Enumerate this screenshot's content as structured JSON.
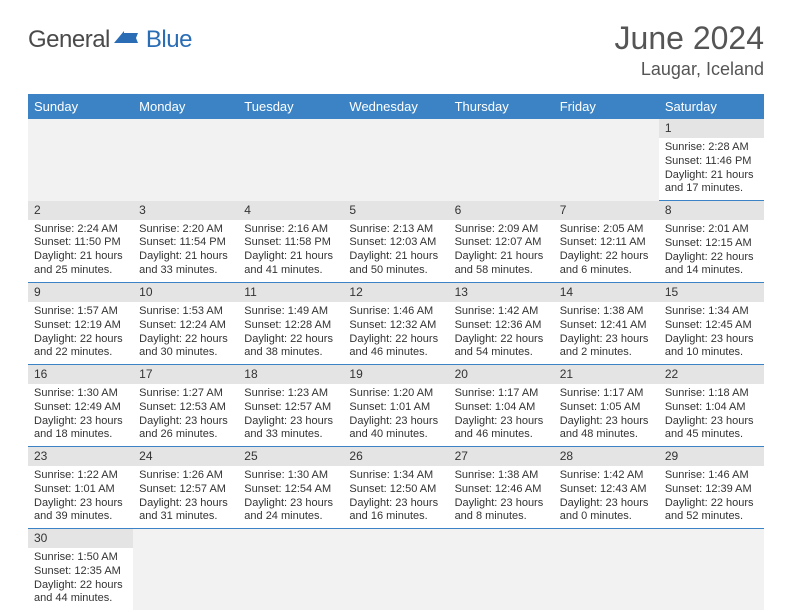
{
  "logo": {
    "general": "General",
    "blue": "Blue"
  },
  "title": {
    "month": "June 2024",
    "location": "Laugar, Iceland"
  },
  "colors": {
    "header_bg": "#3b83c4",
    "header_fg": "#ffffff",
    "daynum_bg": "#e4e4e4",
    "row_divider": "#3b83c4",
    "empty_bg": "#f2f2f2",
    "logo_blue": "#2a6db5",
    "text": "#333333"
  },
  "weekdays": [
    "Sunday",
    "Monday",
    "Tuesday",
    "Wednesday",
    "Thursday",
    "Friday",
    "Saturday"
  ],
  "weeks": [
    [
      null,
      null,
      null,
      null,
      null,
      null,
      {
        "n": "1",
        "sr": "Sunrise: 2:28 AM",
        "ss": "Sunset: 11:46 PM",
        "dl1": "Daylight: 21 hours",
        "dl2": "and 17 minutes."
      }
    ],
    [
      {
        "n": "2",
        "sr": "Sunrise: 2:24 AM",
        "ss": "Sunset: 11:50 PM",
        "dl1": "Daylight: 21 hours",
        "dl2": "and 25 minutes."
      },
      {
        "n": "3",
        "sr": "Sunrise: 2:20 AM",
        "ss": "Sunset: 11:54 PM",
        "dl1": "Daylight: 21 hours",
        "dl2": "and 33 minutes."
      },
      {
        "n": "4",
        "sr": "Sunrise: 2:16 AM",
        "ss": "Sunset: 11:58 PM",
        "dl1": "Daylight: 21 hours",
        "dl2": "and 41 minutes."
      },
      {
        "n": "5",
        "sr": "Sunrise: 2:13 AM",
        "ss": "Sunset: 12:03 AM",
        "dl1": "Daylight: 21 hours",
        "dl2": "and 50 minutes."
      },
      {
        "n": "6",
        "sr": "Sunrise: 2:09 AM",
        "ss": "Sunset: 12:07 AM",
        "dl1": "Daylight: 21 hours",
        "dl2": "and 58 minutes."
      },
      {
        "n": "7",
        "sr": "Sunrise: 2:05 AM",
        "ss": "Sunset: 12:11 AM",
        "dl1": "Daylight: 22 hours",
        "dl2": "and 6 minutes."
      },
      {
        "n": "8",
        "sr": "Sunrise: 2:01 AM",
        "ss": "Sunset: 12:15 AM",
        "dl1": "Daylight: 22 hours",
        "dl2": "and 14 minutes."
      }
    ],
    [
      {
        "n": "9",
        "sr": "Sunrise: 1:57 AM",
        "ss": "Sunset: 12:19 AM",
        "dl1": "Daylight: 22 hours",
        "dl2": "and 22 minutes."
      },
      {
        "n": "10",
        "sr": "Sunrise: 1:53 AM",
        "ss": "Sunset: 12:24 AM",
        "dl1": "Daylight: 22 hours",
        "dl2": "and 30 minutes."
      },
      {
        "n": "11",
        "sr": "Sunrise: 1:49 AM",
        "ss": "Sunset: 12:28 AM",
        "dl1": "Daylight: 22 hours",
        "dl2": "and 38 minutes."
      },
      {
        "n": "12",
        "sr": "Sunrise: 1:46 AM",
        "ss": "Sunset: 12:32 AM",
        "dl1": "Daylight: 22 hours",
        "dl2": "and 46 minutes."
      },
      {
        "n": "13",
        "sr": "Sunrise: 1:42 AM",
        "ss": "Sunset: 12:36 AM",
        "dl1": "Daylight: 22 hours",
        "dl2": "and 54 minutes."
      },
      {
        "n": "14",
        "sr": "Sunrise: 1:38 AM",
        "ss": "Sunset: 12:41 AM",
        "dl1": "Daylight: 23 hours",
        "dl2": "and 2 minutes."
      },
      {
        "n": "15",
        "sr": "Sunrise: 1:34 AM",
        "ss": "Sunset: 12:45 AM",
        "dl1": "Daylight: 23 hours",
        "dl2": "and 10 minutes."
      }
    ],
    [
      {
        "n": "16",
        "sr": "Sunrise: 1:30 AM",
        "ss": "Sunset: 12:49 AM",
        "dl1": "Daylight: 23 hours",
        "dl2": "and 18 minutes."
      },
      {
        "n": "17",
        "sr": "Sunrise: 1:27 AM",
        "ss": "Sunset: 12:53 AM",
        "dl1": "Daylight: 23 hours",
        "dl2": "and 26 minutes."
      },
      {
        "n": "18",
        "sr": "Sunrise: 1:23 AM",
        "ss": "Sunset: 12:57 AM",
        "dl1": "Daylight: 23 hours",
        "dl2": "and 33 minutes."
      },
      {
        "n": "19",
        "sr": "Sunrise: 1:20 AM",
        "ss": "Sunset: 1:01 AM",
        "dl1": "Daylight: 23 hours",
        "dl2": "and 40 minutes."
      },
      {
        "n": "20",
        "sr": "Sunrise: 1:17 AM",
        "ss": "Sunset: 1:04 AM",
        "dl1": "Daylight: 23 hours",
        "dl2": "and 46 minutes."
      },
      {
        "n": "21",
        "sr": "Sunrise: 1:17 AM",
        "ss": "Sunset: 1:05 AM",
        "dl1": "Daylight: 23 hours",
        "dl2": "and 48 minutes."
      },
      {
        "n": "22",
        "sr": "Sunrise: 1:18 AM",
        "ss": "Sunset: 1:04 AM",
        "dl1": "Daylight: 23 hours",
        "dl2": "and 45 minutes."
      }
    ],
    [
      {
        "n": "23",
        "sr": "Sunrise: 1:22 AM",
        "ss": "Sunset: 1:01 AM",
        "dl1": "Daylight: 23 hours",
        "dl2": "and 39 minutes."
      },
      {
        "n": "24",
        "sr": "Sunrise: 1:26 AM",
        "ss": "Sunset: 12:57 AM",
        "dl1": "Daylight: 23 hours",
        "dl2": "and 31 minutes."
      },
      {
        "n": "25",
        "sr": "Sunrise: 1:30 AM",
        "ss": "Sunset: 12:54 AM",
        "dl1": "Daylight: 23 hours",
        "dl2": "and 24 minutes."
      },
      {
        "n": "26",
        "sr": "Sunrise: 1:34 AM",
        "ss": "Sunset: 12:50 AM",
        "dl1": "Daylight: 23 hours",
        "dl2": "and 16 minutes."
      },
      {
        "n": "27",
        "sr": "Sunrise: 1:38 AM",
        "ss": "Sunset: 12:46 AM",
        "dl1": "Daylight: 23 hours",
        "dl2": "and 8 minutes."
      },
      {
        "n": "28",
        "sr": "Sunrise: 1:42 AM",
        "ss": "Sunset: 12:43 AM",
        "dl1": "Daylight: 23 hours",
        "dl2": "and 0 minutes."
      },
      {
        "n": "29",
        "sr": "Sunrise: 1:46 AM",
        "ss": "Sunset: 12:39 AM",
        "dl1": "Daylight: 22 hours",
        "dl2": "and 52 minutes."
      }
    ],
    [
      {
        "n": "30",
        "sr": "Sunrise: 1:50 AM",
        "ss": "Sunset: 12:35 AM",
        "dl1": "Daylight: 22 hours",
        "dl2": "and 44 minutes."
      },
      null,
      null,
      null,
      null,
      null,
      null
    ]
  ]
}
